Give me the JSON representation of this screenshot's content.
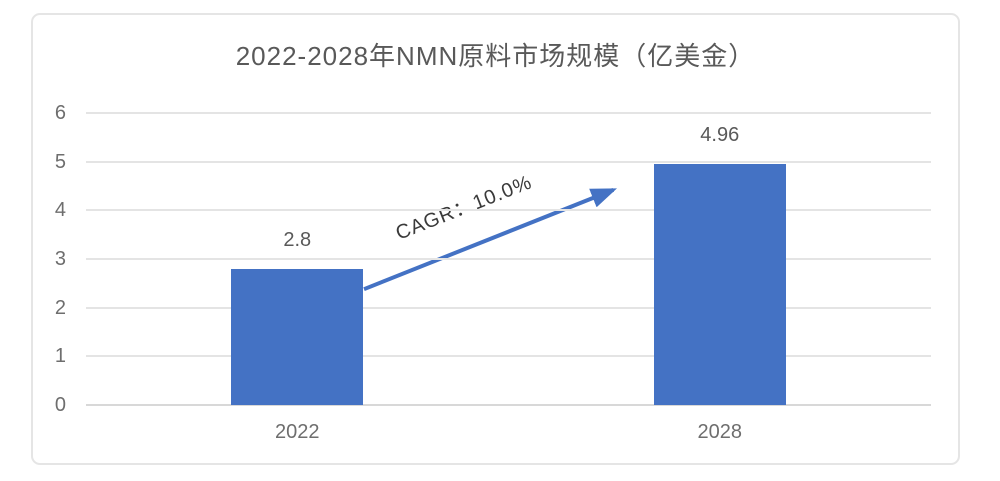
{
  "chart_data": {
    "type": "bar",
    "title": "2022-2028年NMN原料市场规模（亿美金）",
    "categories": [
      "2022",
      "2028"
    ],
    "values": [
      2.8,
      4.96
    ],
    "value_labels": [
      "2.8",
      "4.96"
    ],
    "xlabel": "",
    "ylabel": "",
    "ylim": [
      0,
      6
    ],
    "yticks": [
      0,
      1,
      2,
      3,
      4,
      5,
      6
    ],
    "grid": "horizontal",
    "legend_position": "none",
    "bar_color": "#4472C4",
    "annotation": {
      "label": "CAGR：10.0%",
      "rotation_deg": -21.5,
      "text_anchor": {
        "x_frac": 0.447,
        "value": 4.05
      },
      "arrow": {
        "from": {
          "x_frac": 0.329,
          "value": 2.38
        },
        "to": {
          "x_frac": 0.624,
          "value": 4.42
        }
      },
      "arrow_color": "#4472C4",
      "text_color": "#3a3a3a"
    },
    "colors": {
      "title_text": "#595959",
      "axis_text": "#6e6e6e",
      "value_label_text": "#595959",
      "gridline": "#e4e4e4",
      "axis_line": "#d8d8d8",
      "frame_border": "#e5e5e5",
      "background": "#ffffff"
    }
  }
}
